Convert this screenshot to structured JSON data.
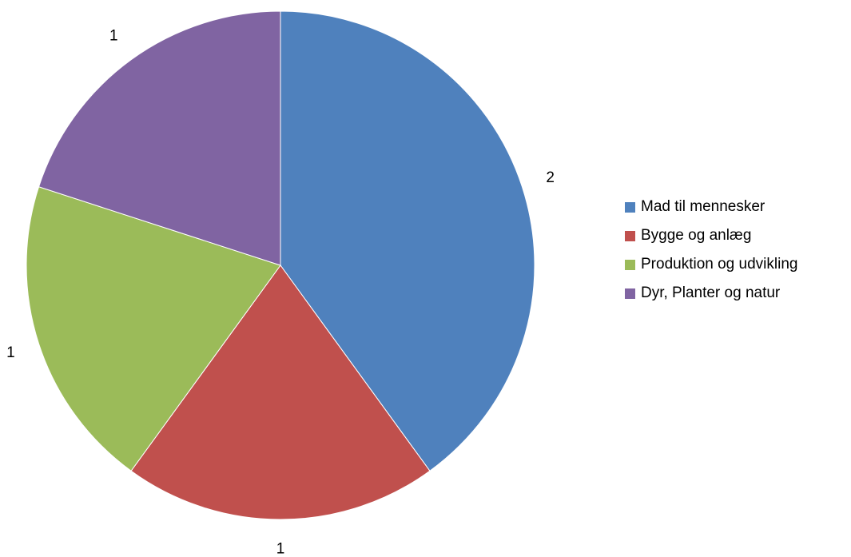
{
  "chart_data": {
    "type": "pie",
    "title": "",
    "categories": [
      "Mad til mennesker",
      "Bygge og anlæg",
      "Produktion og udvikling",
      "Dyr, Planter og natur"
    ],
    "values": [
      2,
      1,
      1,
      1
    ],
    "colors": [
      "#4f81bd",
      "#c0504d",
      "#9bbb59",
      "#8064a2"
    ],
    "data_labels": [
      "2",
      "1",
      "1",
      "1"
    ],
    "start_angle_deg": 0,
    "direction": "clockwise",
    "legend_position": "right"
  }
}
